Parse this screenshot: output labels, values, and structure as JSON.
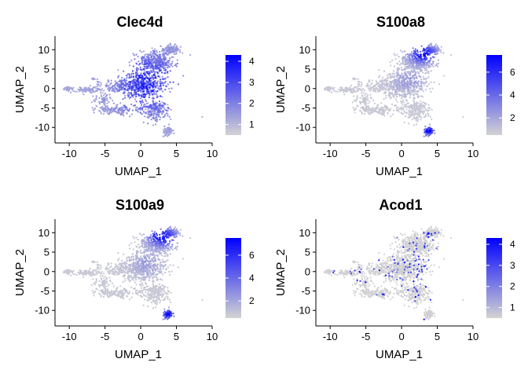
{
  "figure": {
    "background": "#ffffff",
    "low_color": "#d3d3d3",
    "high_color": "#0000ff"
  },
  "chart_data": [
    {
      "type": "scatter",
      "title": "Clec4d",
      "xlabel": "UMAP_1",
      "ylabel": "UMAP_2",
      "xlim": [
        -12,
        10
      ],
      "ylim": [
        -14,
        13.5
      ],
      "x_ticks": [
        "-10",
        "-5",
        "0",
        "5",
        "10"
      ],
      "y_ticks": [
        "10",
        "5",
        "0",
        "-5",
        "-10"
      ],
      "color_scale": {
        "min": 0.5,
        "max": 4.3,
        "ticks": [
          "4",
          "3",
          "2",
          "1"
        ]
      },
      "expression_pattern": "broad moderate expression across main cell cluster",
      "grid": false,
      "legend": "right"
    },
    {
      "type": "scatter",
      "title": "S100a8",
      "xlabel": "UMAP_1",
      "ylabel": "UMAP_2",
      "xlim": [
        -12,
        10
      ],
      "ylim": [
        -14,
        13.5
      ],
      "x_ticks": [
        "-10",
        "-5",
        "0",
        "5",
        "10"
      ],
      "y_ticks": [
        "10",
        "5",
        "0",
        "-5",
        "-10"
      ],
      "color_scale": {
        "min": 0.5,
        "max": 7.5,
        "ticks": [
          "6",
          "4",
          "2"
        ]
      },
      "expression_pattern": "high expression in upper-right and lower-right regions",
      "grid": false,
      "legend": "right"
    },
    {
      "type": "scatter",
      "title": "S100a9",
      "xlabel": "UMAP_1",
      "ylabel": "UMAP_2",
      "xlim": [
        -12,
        10
      ],
      "ylim": [
        -14,
        13.5
      ],
      "x_ticks": [
        "-10",
        "-5",
        "0",
        "5",
        "10"
      ],
      "y_ticks": [
        "10",
        "5",
        "0",
        "-5",
        "-10"
      ],
      "color_scale": {
        "min": 0.5,
        "max": 7.5,
        "ticks": [
          "6",
          "4",
          "2"
        ]
      },
      "expression_pattern": "high expression in upper-right and lower-right regions",
      "grid": false,
      "legend": "right"
    },
    {
      "type": "scatter",
      "title": "Acod1",
      "xlabel": "UMAP_1",
      "ylabel": "UMAP_2",
      "xlim": [
        -12,
        10
      ],
      "ylim": [
        -14,
        13.5
      ],
      "x_ticks": [
        "-10",
        "-5",
        "0",
        "5",
        "10"
      ],
      "y_ticks": [
        "10",
        "5",
        "0",
        "-5",
        "-10"
      ],
      "color_scale": {
        "min": 0.5,
        "max": 4.3,
        "ticks": [
          "4",
          "3",
          "2",
          "1"
        ]
      },
      "expression_pattern": "sparse expression, mostly low",
      "grid": false,
      "legend": "right"
    }
  ]
}
